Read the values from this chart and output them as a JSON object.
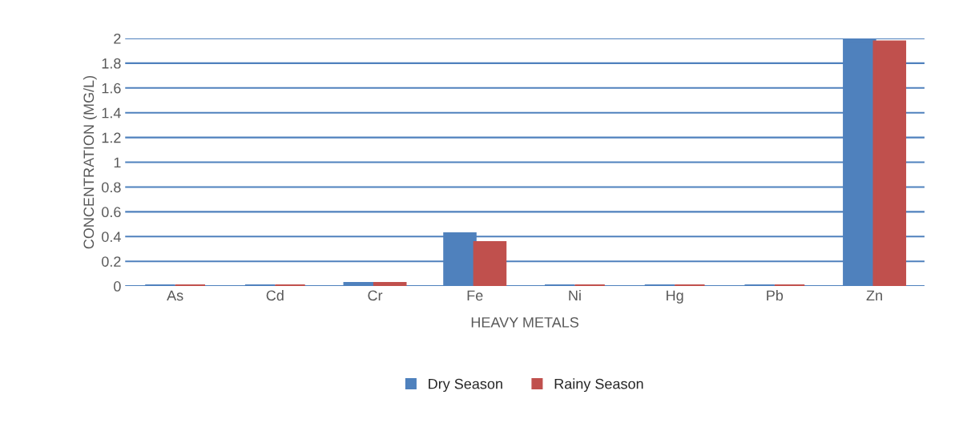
{
  "chart_data": {
    "type": "bar",
    "xlabel": "HEAVY METALS",
    "ylabel": "CONCENTRATION (MG/L)",
    "categories": [
      "As",
      "Cd",
      "Cr",
      "Fe",
      "Ni",
      "Hg",
      "Pb",
      "Zn"
    ],
    "series": [
      {
        "name": "Dry Season",
        "color": "#4f81bd",
        "values": [
          0,
          0,
          0.02,
          0.42,
          0,
          0,
          0,
          1.98
        ]
      },
      {
        "name": "Rainy Season",
        "color": "#c0504d",
        "values": [
          0,
          0,
          0.02,
          0.35,
          0,
          0,
          0,
          1.97
        ]
      }
    ],
    "ylim": [
      0,
      2
    ],
    "yticks": [
      0,
      0.2,
      0.4,
      0.6,
      0.8,
      1,
      1.2,
      1.4,
      1.6,
      1.8,
      2
    ],
    "grid": "y",
    "legend": "bottom"
  }
}
